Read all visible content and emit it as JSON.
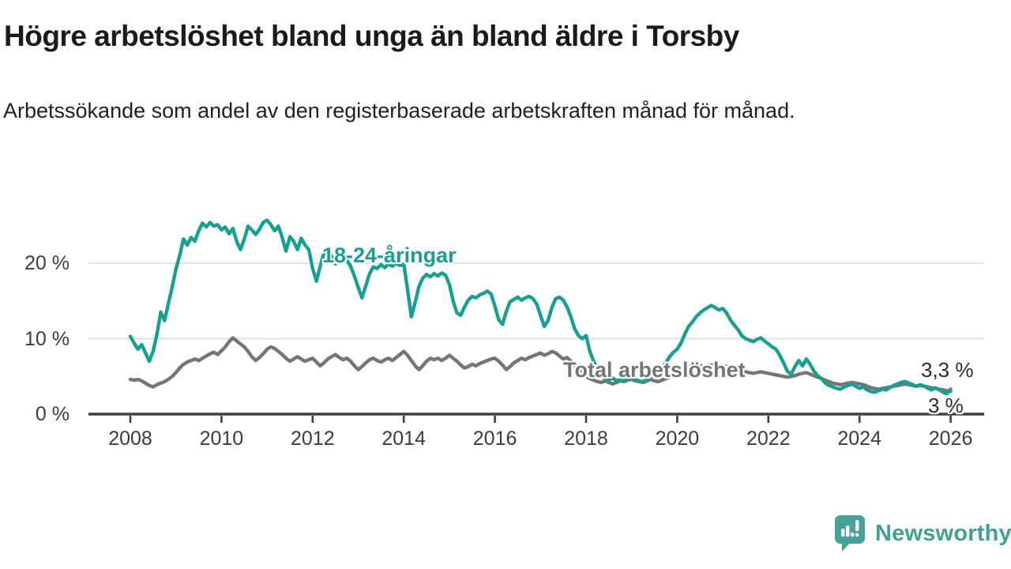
{
  "header": {
    "title": "Högre arbetslöshet bland unga än bland äldre i Torsby",
    "subtitle": "Arbetssökande som andel av den registerbaserade arbetskraften månad för månad."
  },
  "annotations": {
    "series_label_youth": "18-24-åringar",
    "series_label_total": "Total arbetslöshet",
    "end_label_youth": "3,3 %",
    "end_label_total": "3 %"
  },
  "footer": {
    "brand": "Newsworthy",
    "logo_icon": "newsworthy-speech-bubble-chart-icon",
    "brand_color": "#3fa096"
  },
  "chart_data": {
    "type": "line",
    "unit": "%",
    "x_start": {
      "year": 2008,
      "month": 1
    },
    "x_step_months": 1,
    "ylim": [
      0,
      27
    ],
    "grid": "horizontal",
    "colors": {
      "youth": "#17a091",
      "total": "#757575",
      "gridline": "#d9d9d9",
      "axis": "#3f3f3f"
    },
    "yticks": [
      {
        "value": 0,
        "label": "0 %"
      },
      {
        "value": 10,
        "label": "10 %"
      },
      {
        "value": 20,
        "label": "20 %"
      }
    ],
    "xticks": [
      {
        "year": 2008,
        "label": "2008"
      },
      {
        "year": 2010,
        "label": "2010"
      },
      {
        "year": 2012,
        "label": "2012"
      },
      {
        "year": 2014,
        "label": "2014"
      },
      {
        "year": 2016,
        "label": "2016"
      },
      {
        "year": 2018,
        "label": "2018"
      },
      {
        "year": 2020,
        "label": "2020"
      },
      {
        "year": 2022,
        "label": "2022"
      },
      {
        "year": 2024,
        "label": "2024"
      },
      {
        "year": 2026,
        "label": "2026"
      }
    ],
    "series": [
      {
        "name": "Total arbetslöshet",
        "color": "#757575",
        "last_value_label": "3 %",
        "values": [
          4.6,
          4.5,
          4.6,
          4.4,
          4.1,
          3.8,
          3.6,
          3.9,
          4.1,
          4.3,
          4.6,
          5.0,
          5.5,
          6.1,
          6.6,
          6.9,
          7.1,
          7.3,
          7.1,
          7.4,
          7.7,
          8.0,
          8.2,
          7.9,
          8.4,
          8.9,
          9.6,
          10.1,
          9.7,
          9.3,
          8.9,
          8.3,
          7.6,
          7.1,
          7.5,
          8.0,
          8.6,
          8.9,
          8.7,
          8.3,
          7.9,
          7.4,
          7.0,
          7.3,
          7.6,
          7.3,
          7.0,
          7.2,
          7.4,
          6.9,
          6.4,
          6.8,
          7.3,
          7.6,
          7.9,
          7.5,
          7.2,
          7.4,
          7.0,
          6.4,
          5.9,
          6.3,
          6.8,
          7.2,
          7.4,
          7.1,
          6.9,
          7.2,
          7.4,
          7.1,
          7.5,
          7.9,
          8.3,
          7.8,
          7.1,
          6.4,
          5.9,
          6.4,
          7.0,
          7.4,
          7.2,
          7.4,
          7.1,
          7.4,
          7.8,
          7.4,
          7.0,
          6.5,
          6.1,
          6.3,
          6.6,
          6.4,
          6.7,
          6.9,
          7.1,
          7.3,
          7.4,
          7.0,
          6.5,
          5.9,
          6.3,
          6.8,
          7.1,
          7.4,
          7.2,
          7.5,
          7.7,
          7.9,
          8.1,
          7.8,
          8.0,
          8.3,
          8.1,
          7.7,
          7.3,
          7.5,
          7.0,
          6.4,
          5.9,
          5.5,
          5.0,
          4.7,
          4.5,
          4.3,
          4.2,
          4.4,
          4.2,
          4.0,
          4.2,
          4.4,
          4.3,
          4.5,
          4.6,
          4.4,
          4.3,
          4.2,
          4.4,
          4.6,
          4.4,
          4.3,
          4.5,
          4.7,
          4.9,
          5.2,
          5.4,
          5.6,
          5.9,
          6.2,
          6.4,
          6.5,
          6.4,
          6.3,
          6.4,
          6.5,
          6.4,
          6.3,
          6.4,
          6.3,
          6.1,
          6.0,
          5.9,
          5.7,
          5.6,
          5.5,
          5.4,
          5.5,
          5.6,
          5.5,
          5.4,
          5.3,
          5.2,
          5.1,
          5.0,
          4.9,
          5.0,
          5.1,
          5.3,
          5.4,
          5.5,
          5.3,
          5.1,
          4.9,
          4.7,
          4.5,
          4.3,
          4.1,
          4.0,
          3.9,
          4.0,
          4.1,
          4.2,
          4.1,
          4.0,
          3.9,
          3.7,
          3.5,
          3.4,
          3.3,
          3.4,
          3.5,
          3.6,
          3.7,
          3.8,
          3.9,
          4.0,
          3.9,
          3.8,
          3.7,
          3.8,
          3.7,
          3.6,
          3.5,
          3.4,
          3.3,
          3.2,
          3.1,
          3.0
        ]
      },
      {
        "name": "18-24-åringar",
        "color": "#17a091",
        "last_value_label": "3,3 %",
        "values": [
          10.3,
          9.4,
          8.6,
          9.2,
          8.1,
          7.0,
          8.3,
          10.6,
          13.5,
          12.4,
          14.6,
          16.8,
          19.2,
          21.0,
          23.2,
          22.4,
          23.4,
          22.9,
          24.3,
          25.3,
          24.8,
          25.4,
          24.9,
          25.1,
          24.4,
          24.8,
          23.9,
          24.6,
          22.9,
          21.8,
          23.2,
          24.9,
          24.4,
          23.8,
          24.5,
          25.4,
          25.7,
          25.1,
          24.3,
          24.9,
          23.4,
          21.6,
          23.5,
          22.9,
          21.8,
          23.3,
          22.4,
          21.8,
          19.3,
          17.6,
          19.6,
          21.4,
          21.6,
          20.9,
          19.9,
          20.7,
          21.1,
          20.4,
          19.6,
          18.3,
          16.8,
          15.4,
          17.0,
          18.6,
          19.5,
          19.3,
          19.8,
          19.4,
          19.9,
          19.6,
          20.0,
          19.7,
          19.9,
          16.5,
          12.9,
          14.8,
          16.9,
          18.0,
          18.5,
          18.2,
          18.6,
          18.3,
          18.7,
          18.4,
          17.2,
          15.0,
          13.4,
          13.1,
          14.2,
          15.1,
          15.6,
          15.4,
          15.8,
          16.0,
          16.3,
          15.9,
          14.3,
          12.5,
          11.9,
          13.6,
          14.9,
          15.2,
          15.5,
          15.1,
          15.4,
          15.6,
          15.3,
          14.6,
          13.1,
          11.6,
          12.4,
          14.1,
          15.3,
          15.5,
          15.1,
          14.2,
          12.9,
          11.3,
          10.4,
          10.0,
          10.4,
          8.3,
          7.0,
          5.9,
          5.1,
          4.7,
          4.5,
          4.8,
          4.4,
          4.6,
          4.4,
          4.7,
          4.9,
          4.6,
          4.4,
          4.3,
          4.6,
          4.9,
          5.3,
          5.7,
          6.2,
          6.8,
          7.6,
          8.2,
          8.6,
          9.4,
          10.6,
          11.6,
          12.2,
          12.9,
          13.4,
          13.8,
          14.1,
          14.4,
          14.1,
          13.8,
          14.0,
          13.4,
          12.5,
          11.8,
          11.2,
          10.4,
          10.0,
          9.8,
          9.6,
          9.9,
          10.1,
          9.7,
          9.3,
          8.9,
          8.6,
          7.8,
          6.8,
          5.7,
          5.3,
          6.3,
          7.1,
          6.4,
          7.3,
          6.6,
          5.7,
          5.1,
          4.7,
          4.1,
          3.8,
          3.6,
          3.4,
          3.3,
          3.6,
          3.8,
          4.0,
          3.7,
          3.4,
          3.6,
          3.2,
          3.0,
          2.9,
          3.1,
          3.3,
          3.2,
          3.5,
          3.8,
          4.0,
          4.2,
          4.3,
          4.1,
          3.9,
          3.7,
          3.9,
          3.7,
          3.4,
          3.2,
          3.5,
          3.2,
          2.9,
          2.7,
          3.3
        ]
      }
    ]
  }
}
